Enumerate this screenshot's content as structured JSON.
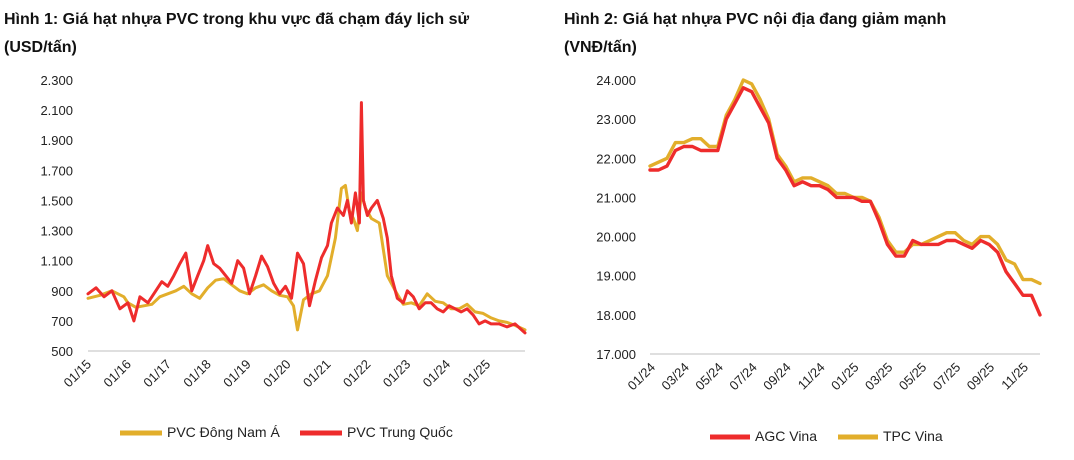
{
  "colors": {
    "yellow": "#E2AE2B",
    "red": "#EE2C2C",
    "axis": "#bfbfbf"
  },
  "chart_data": [
    {
      "type": "line",
      "title": "Hình 1: Giá hạt nhựa PVC trong khu vực đã chạm đáy lịch sử",
      "unit": "(USD/tấn)",
      "ylim": [
        500,
        2300
      ],
      "yticks": [
        "2.300",
        "2.100",
        "1.900",
        "1.700",
        "1.500",
        "1.300",
        "1.100",
        "900",
        "700",
        "500"
      ],
      "ytick_values": [
        2300,
        2100,
        1900,
        1700,
        1500,
        1300,
        1100,
        900,
        700,
        500
      ],
      "xlim": [
        2015.0,
        2025.95
      ],
      "xticks": [
        "01/15",
        "01/16",
        "01/17",
        "01/18",
        "01/19",
        "01/20",
        "01/21",
        "01/22",
        "01/23",
        "01/24",
        "01/25"
      ],
      "xtick_values": [
        2015,
        2016,
        2017,
        2018,
        2019,
        2020,
        2021,
        2022,
        2023,
        2024,
        2025
      ],
      "legend": [
        "PVC Đông Nam Á",
        "PVC Trung Quốc"
      ],
      "series": [
        {
          "name": "PVC Đông Nam Á",
          "color": "#E2AE2B",
          "x": [
            2015.0,
            2015.3,
            2015.6,
            2015.9,
            2016.0,
            2016.2,
            2016.4,
            2016.6,
            2016.8,
            2017.0,
            2017.2,
            2017.4,
            2017.6,
            2017.8,
            2018.0,
            2018.2,
            2018.4,
            2018.6,
            2018.8,
            2019.0,
            2019.2,
            2019.4,
            2019.6,
            2019.8,
            2020.0,
            2020.15,
            2020.25,
            2020.4,
            2020.6,
            2020.8,
            2021.0,
            2021.2,
            2021.35,
            2021.45,
            2021.55,
            2021.65,
            2021.75,
            2021.85,
            2021.95,
            2022.1,
            2022.3,
            2022.5,
            2022.7,
            2022.9,
            2023.1,
            2023.3,
            2023.5,
            2023.7,
            2023.9,
            2024.1,
            2024.3,
            2024.5,
            2024.7,
            2024.9,
            2025.1,
            2025.3,
            2025.5,
            2025.7,
            2025.95
          ],
          "values": [
            850,
            870,
            900,
            860,
            820,
            790,
            800,
            810,
            860,
            880,
            900,
            930,
            880,
            850,
            920,
            970,
            980,
            940,
            900,
            880,
            920,
            940,
            900,
            870,
            860,
            800,
            640,
            840,
            880,
            900,
            1000,
            1250,
            1580,
            1600,
            1430,
            1380,
            1300,
            1550,
            1450,
            1380,
            1350,
            1000,
            900,
            810,
            820,
            800,
            880,
            830,
            820,
            780,
            780,
            810,
            760,
            750,
            720,
            700,
            690,
            670,
            640
          ]
        },
        {
          "name": "PVC Trung Quốc",
          "color": "#EE2C2C",
          "x": [
            2015.0,
            2015.2,
            2015.4,
            2015.6,
            2015.8,
            2016.0,
            2016.15,
            2016.3,
            2016.5,
            2016.7,
            2016.85,
            2017.0,
            2017.15,
            2017.3,
            2017.45,
            2017.6,
            2017.75,
            2017.9,
            2018.0,
            2018.15,
            2018.3,
            2018.45,
            2018.6,
            2018.75,
            2018.9,
            2019.05,
            2019.2,
            2019.35,
            2019.5,
            2019.65,
            2019.8,
            2019.95,
            2020.1,
            2020.25,
            2020.4,
            2020.55,
            2020.7,
            2020.85,
            2021.0,
            2021.1,
            2021.25,
            2021.4,
            2021.5,
            2021.6,
            2021.7,
            2021.8,
            2021.85,
            2021.9,
            2022.0,
            2022.1,
            2022.25,
            2022.4,
            2022.5,
            2022.6,
            2022.75,
            2022.9,
            2023.0,
            2023.15,
            2023.3,
            2023.45,
            2023.6,
            2023.75,
            2023.9,
            2024.05,
            2024.2,
            2024.35,
            2024.5,
            2024.65,
            2024.8,
            2024.95,
            2025.1,
            2025.3,
            2025.5,
            2025.7,
            2025.95
          ],
          "values": [
            880,
            920,
            860,
            900,
            780,
            820,
            700,
            860,
            820,
            900,
            960,
            930,
            1000,
            1080,
            1150,
            900,
            1000,
            1100,
            1200,
            1080,
            1050,
            1000,
            950,
            1100,
            1050,
            880,
            1000,
            1130,
            1060,
            950,
            880,
            930,
            850,
            1150,
            1080,
            800,
            970,
            1120,
            1200,
            1350,
            1450,
            1400,
            1500,
            1350,
            1550,
            1350,
            2150,
            1500,
            1400,
            1450,
            1500,
            1380,
            1250,
            1000,
            850,
            820,
            900,
            860,
            780,
            820,
            820,
            780,
            760,
            800,
            780,
            760,
            780,
            740,
            680,
            700,
            680,
            680,
            660,
            680,
            620
          ]
        }
      ]
    },
    {
      "type": "line",
      "title": "Hình 2: Giá hạt nhựa PVC nội địa đang giảm mạnh",
      "unit": "(VNĐ/tấn)",
      "ylim": [
        17000,
        24000
      ],
      "yticks": [
        "24.000",
        "23.000",
        "22.000",
        "21.000",
        "20.000",
        "19.000",
        "18.000",
        "17.000"
      ],
      "ytick_values": [
        24000,
        23000,
        22000,
        21000,
        20000,
        19000,
        18000,
        17000
      ],
      "xlim": [
        0,
        23
      ],
      "xticks": [
        "01/24",
        "03/24",
        "05/24",
        "07/24",
        "09/24",
        "11/24",
        "01/25",
        "03/25",
        "05/25",
        "07/25",
        "09/25",
        "11/25"
      ],
      "xtick_values": [
        0,
        2,
        4,
        6,
        8,
        10,
        12,
        14,
        16,
        18,
        20,
        22
      ],
      "legend": [
        "AGC Vina",
        "TPC Vina"
      ],
      "series": [
        {
          "name": "AGC Vina",
          "color": "#EE2C2C",
          "x": [
            0,
            0.5,
            1,
            1.5,
            2,
            2.5,
            3,
            3.5,
            4,
            4.5,
            5,
            5.5,
            6,
            6.5,
            7,
            7.5,
            8,
            8.5,
            9,
            9.5,
            10,
            10.5,
            11,
            11.5,
            12,
            12.5,
            13,
            13.5,
            14,
            14.5,
            15,
            15.5,
            16,
            16.5,
            17,
            17.5,
            18,
            18.5,
            19,
            19.5,
            20,
            20.5,
            21,
            21.5,
            22,
            22.5,
            23
          ],
          "values": [
            21700,
            21700,
            21800,
            22200,
            22300,
            22300,
            22200,
            22200,
            22200,
            23000,
            23400,
            23800,
            23700,
            23300,
            22900,
            22000,
            21700,
            21300,
            21400,
            21300,
            21300,
            21200,
            21000,
            21000,
            21000,
            20900,
            20900,
            20400,
            19800,
            19500,
            19500,
            19900,
            19800,
            19800,
            19800,
            19900,
            19900,
            19800,
            19700,
            19900,
            19800,
            19600,
            19100,
            18800,
            18500,
            18500,
            18000
          ]
        },
        {
          "name": "TPC Vina",
          "color": "#E2AE2B",
          "x": [
            0,
            0.5,
            1,
            1.5,
            2,
            2.5,
            3,
            3.5,
            4,
            4.5,
            5,
            5.5,
            6,
            6.5,
            7,
            7.5,
            8,
            8.5,
            9,
            9.5,
            10,
            10.5,
            11,
            11.5,
            12,
            12.5,
            13,
            13.5,
            14,
            14.5,
            15,
            15.5,
            16,
            16.5,
            17,
            17.5,
            18,
            18.5,
            19,
            19.5,
            20,
            20.5,
            21,
            21.5,
            22,
            22.5,
            23
          ],
          "values": [
            21800,
            21900,
            22000,
            22400,
            22400,
            22500,
            22500,
            22300,
            22300,
            23100,
            23500,
            24000,
            23900,
            23500,
            23000,
            22100,
            21800,
            21400,
            21500,
            21500,
            21400,
            21300,
            21100,
            21100,
            21000,
            21000,
            20900,
            20500,
            19900,
            19600,
            19600,
            19800,
            19800,
            19900,
            20000,
            20100,
            20100,
            19900,
            19800,
            20000,
            20000,
            19800,
            19400,
            19300,
            18900,
            18900,
            18800
          ]
        }
      ]
    }
  ]
}
